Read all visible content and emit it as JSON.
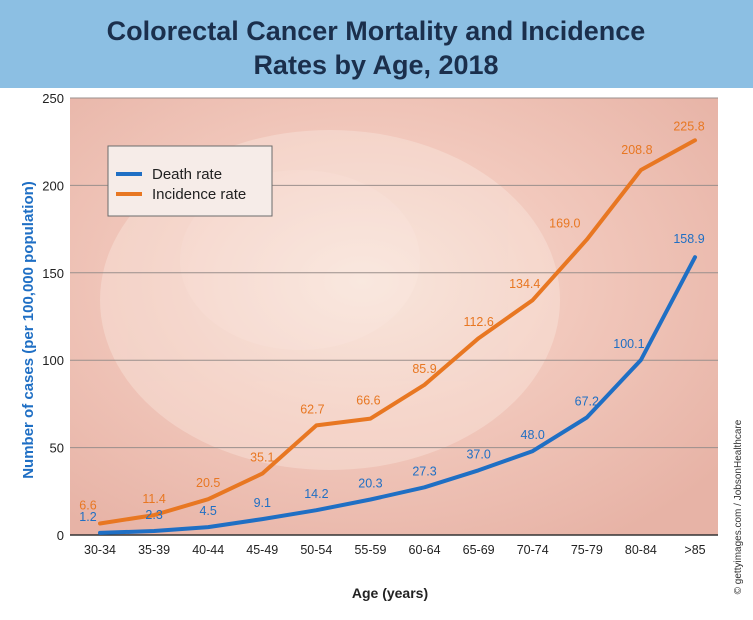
{
  "chart_data": {
    "type": "line",
    "title_line1": "Colorectal Cancer Mortality and Incidence",
    "title_line2": "Rates by Age, 2018",
    "xlabel": "Age (years)",
    "ylabel": "Number of cases (per 100,000 population)",
    "ylim": [
      0,
      250
    ],
    "yticks": [
      0,
      50,
      100,
      150,
      200,
      250
    ],
    "grid": true,
    "legend_position": "top-left",
    "categories": [
      "30-34",
      "35-39",
      "40-44",
      "45-49",
      "50-54",
      "55-59",
      "60-64",
      "65-69",
      "70-74",
      "75-79",
      "80-84",
      ">85"
    ],
    "series": [
      {
        "name": "Death rate",
        "color": "#1f6fc4",
        "values": [
          1.2,
          2.3,
          4.5,
          9.1,
          14.2,
          20.3,
          27.3,
          37.0,
          48.0,
          67.2,
          100.1,
          158.9
        ],
        "labels": [
          "1.2",
          "2.3",
          "4.5",
          "9.1",
          "14.2",
          "20.3",
          "27.3",
          "37.0",
          "48.0",
          "67.2",
          "100.1",
          "158.9"
        ]
      },
      {
        "name": "Incidence rate",
        "color": "#e87722",
        "values": [
          6.6,
          11.4,
          20.5,
          35.1,
          62.7,
          66.6,
          85.9,
          112.6,
          134.4,
          169.0,
          208.8,
          225.8
        ],
        "labels": [
          "6.6",
          "11.4",
          "20.5",
          "35.1",
          "62.7",
          "66.6",
          "85.9",
          "112.6",
          "134.4",
          "169.0",
          "208.8",
          "225.8"
        ]
      }
    ],
    "credit": "© gettyimages.com / JobsonHealthcare"
  },
  "colors": {
    "title_bg": "#8cbfe3",
    "title_text": "#1b2f4c",
    "ylabel": "#1f6fc4",
    "plot_bg": "#f3cfc8",
    "gridline": "#9a8f8c"
  }
}
